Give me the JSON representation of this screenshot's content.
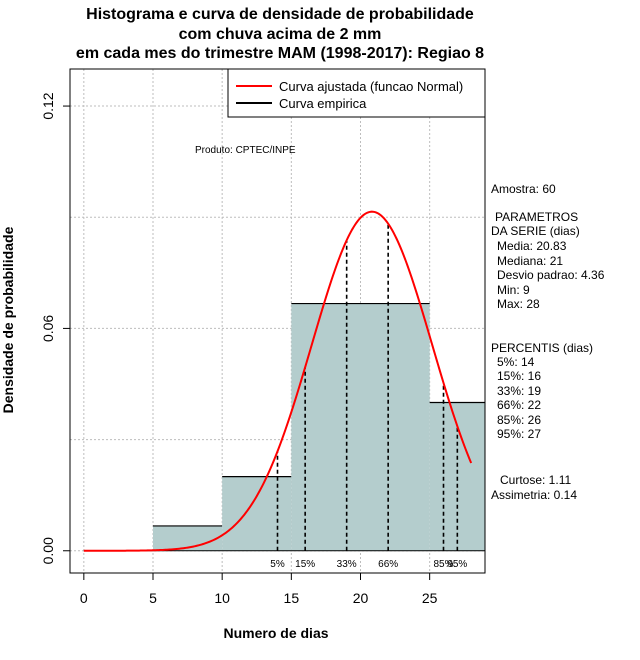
{
  "title": {
    "line1": "Histograma e curva de densidade de probabilidade",
    "line2": "com chuva acima de 2 mm",
    "line3": "em cada mes do trimestre MAM (1998-2017): Regiao 8"
  },
  "product_label": "Produto: CPTEC/INPE",
  "colors": {
    "bar_fill": "#b4cdcd",
    "curve": "#ff0000",
    "empirical": "#000000",
    "grid": "#bdbdbd"
  },
  "legend": {
    "fitted": "Curva ajustada (funcao Normal)",
    "empirical": "Curva empirica"
  },
  "stats": {
    "sample": "Amostra: 60",
    "params_title_1": "PARAMETROS",
    "params_title_2": "DA SERIE (dias)",
    "media": "Media: 20.83",
    "mediana": "Mediana: 21",
    "desvio": "Desvio padrao: 4.36",
    "min": "Min: 9",
    "max": "Max: 28",
    "percentis_title": "PERCENTIS (dias)",
    "p5": "5%: 14",
    "p15": "15%: 16",
    "p33": "33%: 19",
    "p66": "66%: 22",
    "p85": "85%: 26",
    "p95": "95%: 27",
    "curtose": "Curtose: 1.11",
    "assimetria": "Assimetria: 0.14"
  },
  "chart_data": {
    "type": "bar",
    "title": "Histograma e curva de densidade de probabilidade com chuva acima de 2 mm em cada mes do trimestre MAM (1998-2017): Regiao 8",
    "xlabel": "Numero de dias",
    "ylabel": "Densidade de probabilidade",
    "xlim": [
      -1,
      29
    ],
    "ylim": [
      -0.006,
      0.13
    ],
    "x_ticks": [
      0,
      5,
      10,
      15,
      20,
      25
    ],
    "y_ticks": [
      0.0,
      0.06,
      0.12
    ],
    "y_tick_labels": [
      "0.00",
      "0.06",
      "0.12"
    ],
    "bins": [
      {
        "start": 0,
        "end": 5,
        "density": 0.0
      },
      {
        "start": 5,
        "end": 10,
        "density": 0.0067
      },
      {
        "start": 10,
        "end": 15,
        "density": 0.02
      },
      {
        "start": 15,
        "end": 20,
        "density": 0.0667
      },
      {
        "start": 20,
        "end": 25,
        "density": 0.0667
      },
      {
        "start": 25,
        "end": 30,
        "density": 0.04
      }
    ],
    "normal_fit": {
      "mean": 20.83,
      "sd": 4.36,
      "x_range": [
        0,
        28
      ]
    },
    "percentiles": [
      {
        "label": "5%",
        "value": 14
      },
      {
        "label": "15%",
        "value": 16
      },
      {
        "label": "33%",
        "value": 19
      },
      {
        "label": "66%",
        "value": 22
      },
      {
        "label": "85%",
        "value": 26
      },
      {
        "label": "95%",
        "value": 27
      }
    ],
    "grid": true,
    "legend_position": "top-right"
  }
}
